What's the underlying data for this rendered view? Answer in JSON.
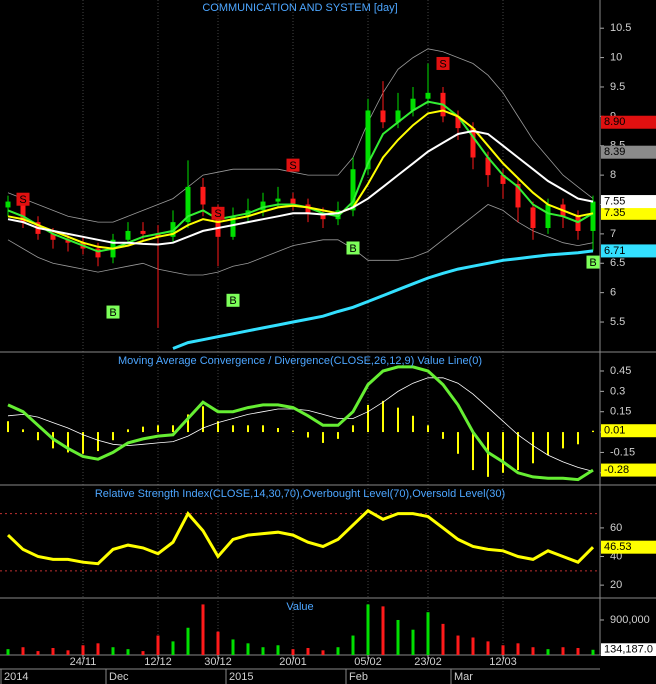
{
  "x_axis": {
    "days": [
      null,
      null,
      null,
      null,
      null,
      "24/11",
      null,
      null,
      null,
      null,
      "12/12",
      null,
      null,
      null,
      "30/12",
      null,
      null,
      null,
      null,
      "20/01",
      null,
      null,
      null,
      null,
      "05/02",
      null,
      null,
      null,
      "23/02",
      null,
      null,
      null,
      null,
      "12/03",
      null,
      null,
      null,
      null,
      null,
      null
    ],
    "months": [
      "2014",
      null,
      null,
      null,
      null,
      null,
      null,
      "Dec",
      null,
      null,
      null,
      null,
      null,
      null,
      null,
      "2015",
      null,
      null,
      null,
      null,
      null,
      null,
      null,
      "Feb",
      null,
      null,
      null,
      null,
      null,
      null,
      "Mar",
      null,
      null,
      null,
      null,
      null,
      null,
      null,
      null,
      null
    ]
  },
  "chart_data": [
    {
      "type": "candlestick",
      "title": "COMMUNICATION AND SYSTEM [day]",
      "up_color": "#00e000",
      "down_color": "#ff1a1a",
      "open": [
        7.45,
        7.5,
        7.2,
        7.0,
        6.9,
        6.85,
        6.75,
        6.6,
        6.9,
        7.05,
        7.0,
        6.95,
        7.2,
        7.8,
        7.4,
        6.95,
        7.3,
        7.4,
        7.55,
        7.6,
        7.5,
        7.35,
        7.25,
        7.4,
        8.1,
        9.1,
        8.9,
        9.1,
        9.3,
        9.4,
        9.0,
        8.8,
        8.3,
        8.0,
        7.85,
        7.45,
        7.1,
        7.5,
        7.3,
        7.05
      ],
      "high": [
        7.65,
        7.55,
        7.3,
        7.1,
        7.0,
        6.95,
        6.85,
        7.0,
        7.2,
        7.2,
        7.15,
        7.4,
        8.25,
        7.95,
        7.5,
        7.45,
        7.6,
        7.7,
        7.8,
        7.7,
        7.6,
        7.45,
        7.55,
        8.3,
        9.3,
        9.6,
        9.4,
        9.5,
        9.9,
        9.5,
        9.1,
        8.9,
        8.4,
        8.1,
        7.95,
        7.55,
        7.6,
        7.6,
        7.4,
        7.65
      ],
      "low": [
        7.3,
        7.1,
        6.9,
        6.75,
        6.7,
        6.65,
        6.45,
        6.5,
        6.8,
        6.9,
        5.4,
        6.85,
        7.1,
        7.3,
        6.45,
        6.9,
        7.2,
        7.3,
        7.45,
        7.4,
        7.2,
        7.1,
        7.15,
        7.3,
        8.0,
        8.8,
        8.8,
        9.0,
        9.2,
        8.9,
        8.6,
        8.1,
        7.8,
        7.6,
        7.2,
        6.9,
        7.0,
        7.1,
        6.9,
        6.71
      ],
      "close": [
        7.55,
        7.2,
        7.0,
        6.9,
        6.85,
        6.75,
        6.6,
        6.9,
        7.05,
        7.0,
        6.95,
        7.2,
        7.8,
        7.5,
        6.95,
        7.3,
        7.4,
        7.55,
        7.6,
        7.5,
        7.35,
        7.25,
        7.4,
        8.1,
        9.1,
        8.9,
        9.1,
        9.3,
        9.4,
        9.0,
        8.8,
        8.3,
        8.0,
        7.85,
        7.45,
        7.1,
        7.5,
        7.3,
        7.05,
        7.55
      ],
      "bands": {
        "color": "#9a9a9a",
        "upper": [
          7.7,
          7.6,
          7.5,
          7.4,
          7.3,
          7.25,
          7.2,
          7.2,
          7.3,
          7.4,
          7.5,
          7.6,
          7.8,
          8.0,
          8.05,
          8.1,
          8.1,
          8.1,
          8.1,
          8.05,
          8.0,
          8.0,
          8.0,
          8.3,
          8.9,
          9.4,
          9.8,
          10.0,
          10.15,
          10.1,
          10.0,
          9.9,
          9.7,
          9.4,
          9.0,
          8.6,
          8.3,
          8.0,
          7.8,
          7.6
        ],
        "lower": [
          6.9,
          6.75,
          6.6,
          6.5,
          6.45,
          6.4,
          6.35,
          6.4,
          6.45,
          6.5,
          6.4,
          6.35,
          6.3,
          6.3,
          6.35,
          6.45,
          6.5,
          6.6,
          6.7,
          6.8,
          6.85,
          6.9,
          6.9,
          6.75,
          6.55,
          6.55,
          6.55,
          6.6,
          6.7,
          6.9,
          7.1,
          7.3,
          7.5,
          7.4,
          7.2,
          7.05,
          6.95,
          6.85,
          6.8,
          6.85
        ]
      },
      "overlays": [
        {
          "color": "#33ee33",
          "values": [
            7.4,
            7.3,
            7.15,
            7.0,
            6.9,
            6.8,
            6.7,
            6.75,
            6.85,
            6.95,
            7.0,
            7.05,
            7.3,
            7.4,
            7.25,
            7.3,
            7.35,
            7.45,
            7.5,
            7.5,
            7.45,
            7.35,
            7.3,
            7.55,
            8.2,
            8.7,
            8.9,
            9.1,
            9.25,
            9.2,
            9.0,
            8.65,
            8.3,
            8.0,
            7.8,
            7.5,
            7.35,
            7.3,
            7.2,
            7.35
          ]
        },
        {
          "color": "#ffff00",
          "values": [
            7.3,
            7.25,
            7.15,
            7.05,
            6.95,
            6.85,
            6.78,
            6.75,
            6.8,
            6.88,
            6.95,
            7.0,
            7.15,
            7.25,
            7.2,
            7.25,
            7.3,
            7.38,
            7.45,
            7.48,
            7.45,
            7.4,
            7.35,
            7.45,
            7.85,
            8.3,
            8.6,
            8.85,
            9.05,
            9.1,
            9.0,
            8.8,
            8.5,
            8.2,
            7.95,
            7.7,
            7.5,
            7.4,
            7.3,
            7.35
          ],
          "last_label": "7.35"
        },
        {
          "color": "#ffffff",
          "values": [
            7.25,
            7.2,
            7.1,
            7.05,
            7.0,
            6.95,
            6.9,
            6.85,
            6.85,
            6.83,
            6.82,
            6.85,
            6.95,
            7.05,
            7.1,
            7.15,
            7.2,
            7.25,
            7.3,
            7.35,
            7.35,
            7.33,
            7.35,
            7.45,
            7.6,
            7.8,
            8.0,
            8.2,
            8.4,
            8.55,
            8.7,
            8.75,
            8.7,
            8.5,
            8.3,
            8.1,
            7.9,
            7.75,
            7.6,
            7.55
          ],
          "last_label": "7.55"
        },
        {
          "color": "#33e0ff",
          "values": [
            null,
            null,
            null,
            null,
            null,
            null,
            null,
            null,
            null,
            null,
            null,
            5.05,
            5.15,
            5.2,
            5.25,
            5.3,
            5.35,
            5.4,
            5.45,
            5.5,
            5.55,
            5.6,
            5.68,
            5.75,
            5.85,
            5.95,
            6.05,
            6.15,
            6.25,
            6.33,
            6.4,
            6.45,
            6.5,
            6.55,
            6.58,
            6.61,
            6.64,
            6.66,
            6.68,
            6.71
          ],
          "last_label": "6.71"
        }
      ],
      "levels": [
        {
          "value": 8.9,
          "label": "8.90",
          "color": "#e01010"
        },
        {
          "value": 8.39,
          "label": "8.39",
          "color": "#8a8a8a"
        }
      ],
      "signals": [
        {
          "label": "S",
          "bar": 1,
          "price": 7.59
        },
        {
          "label": "S",
          "bar": 14,
          "price": 7.35
        },
        {
          "label": "S",
          "bar": 19,
          "price": 8.17
        },
        {
          "label": "S",
          "bar": 29,
          "price": 9.9
        },
        {
          "label": "B",
          "bar": 7,
          "price": 5.67
        },
        {
          "label": "B",
          "bar": 15,
          "price": 5.87
        },
        {
          "label": "B",
          "bar": 23,
          "price": 6.76
        },
        {
          "label": "B",
          "bar": 39,
          "price": 6.52
        }
      ],
      "ylim": [
        4.99,
        10.98
      ],
      "yticks": [
        5.5,
        6,
        6.5,
        7,
        7.5,
        8,
        8.5,
        9,
        9.5,
        10,
        10.5
      ]
    },
    {
      "type": "macd",
      "title": "Moving Average Convergence / Divergence(CLOSE,26,12,9) Value Line(0)",
      "macd": {
        "color": "#66ee33",
        "values": [
          0.2,
          0.15,
          0.05,
          -0.05,
          -0.12,
          -0.18,
          -0.2,
          -0.15,
          -0.08,
          -0.05,
          -0.03,
          -0.02,
          0.1,
          0.22,
          0.15,
          0.15,
          0.18,
          0.2,
          0.2,
          0.18,
          0.12,
          0.05,
          0.05,
          0.15,
          0.35,
          0.45,
          0.48,
          0.48,
          0.45,
          0.35,
          0.2,
          0.0,
          -0.15,
          -0.22,
          -0.3,
          -0.33,
          -0.34,
          -0.34,
          -0.35,
          -0.28
        ],
        "last_label": "-0.28"
      },
      "signal": {
        "color": "#ffffff",
        "values": [
          0.12,
          0.13,
          0.11,
          0.07,
          0.03,
          -0.02,
          -0.06,
          -0.09,
          -0.1,
          -0.09,
          -0.08,
          -0.07,
          -0.03,
          0.03,
          0.07,
          0.1,
          0.13,
          0.15,
          0.17,
          0.17,
          0.16,
          0.13,
          0.1,
          0.1,
          0.15,
          0.22,
          0.3,
          0.36,
          0.4,
          0.4,
          0.36,
          0.28,
          0.18,
          0.08,
          -0.02,
          -0.1,
          -0.17,
          -0.22,
          -0.26,
          -0.29
        ]
      },
      "histogram": {
        "color": "#ffff00",
        "values": [
          0.08,
          0.02,
          -0.06,
          -0.12,
          -0.15,
          -0.16,
          -0.14,
          -0.06,
          0.02,
          0.04,
          0.05,
          0.05,
          0.13,
          0.19,
          0.08,
          0.05,
          0.05,
          0.05,
          0.03,
          0.01,
          -0.04,
          -0.08,
          -0.05,
          0.05,
          0.2,
          0.23,
          0.18,
          0.12,
          0.05,
          -0.05,
          -0.16,
          -0.28,
          -0.33,
          -0.3,
          -0.28,
          -0.23,
          -0.17,
          -0.12,
          -0.09,
          0.01
        ],
        "last_label": "0.01"
      },
      "ylim": [
        -0.39,
        0.59
      ],
      "yticks": [
        -0.3,
        -0.15,
        0,
        0.15,
        0.3,
        0.45
      ]
    },
    {
      "type": "rsi",
      "title": "Relative Strength Index(CLOSE,14,30,70),Overbought Level(70),Oversold Level(30)",
      "color": "#ffff00",
      "values": [
        55,
        45,
        40,
        38,
        38,
        36,
        35,
        45,
        48,
        46,
        42,
        50,
        70,
        58,
        40,
        52,
        55,
        56,
        57,
        55,
        50,
        47,
        52,
        62,
        72,
        66,
        70,
        70,
        68,
        60,
        52,
        47,
        45,
        44,
        40,
        38,
        44,
        40,
        36,
        46.53
      ],
      "last_label": "46.53",
      "levels": [
        70,
        30
      ],
      "level_color": "#c03030",
      "ylim": [
        11,
        90
      ],
      "yticks": [
        20,
        40,
        60
      ]
    },
    {
      "type": "volume",
      "title": "Value",
      "up_color": "#00e000",
      "down_color": "#ff1a1a",
      "values": [
        150000,
        200000,
        100000,
        180000,
        120000,
        250000,
        300000,
        200000,
        150000,
        100000,
        500000,
        350000,
        700000,
        1300000,
        600000,
        400000,
        300000,
        200000,
        250000,
        150000,
        180000,
        120000,
        200000,
        500000,
        1300000,
        1250000,
        900000,
        650000,
        1100000,
        800000,
        500000,
        450000,
        350000,
        250000,
        300000,
        200000,
        150000,
        200000,
        180000,
        134187
      ],
      "last_label": "134,187.0",
      "ylim": [
        0,
        1465000
      ],
      "yticks": [
        {
          "value": 900000,
          "label": "900,000"
        }
      ]
    }
  ]
}
